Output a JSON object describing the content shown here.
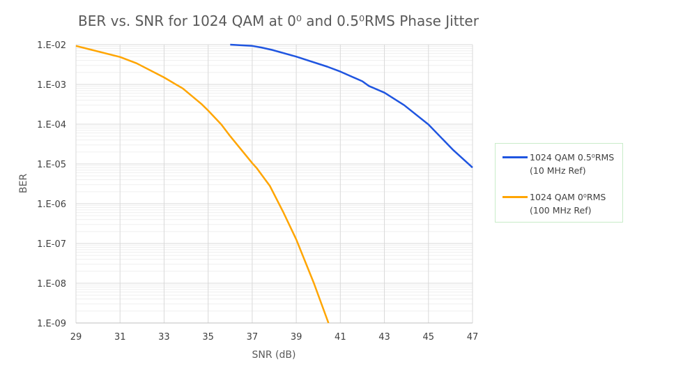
{
  "chart_data": {
    "type": "line",
    "title": "BER vs. SNR for 1024 QAM at 0⁰ and 0.5⁰RMS Phase Jitter",
    "xlabel": "SNR (dB)",
    "ylabel": "BER",
    "xlim": [
      29,
      47
    ],
    "ylim": [
      1e-09,
      0.01
    ],
    "yscale": "log",
    "grid": true,
    "legend_position": "right",
    "x_ticks": [
      "29",
      "31",
      "33",
      "35",
      "37",
      "39",
      "41",
      "43",
      "45",
      "47"
    ],
    "y_ticks": [
      "1.E-02",
      "1.E-03",
      "1.E-04",
      "1.E-05",
      "1.E-06",
      "1.E-07",
      "1.E-08",
      "1.E-09"
    ],
    "series": [
      {
        "name": "1024 QAM 0.5⁰RMS",
        "name_line2": "(10 MHz Ref)",
        "color": "#1f55e0",
        "x": [
          36.0,
          37.0,
          37.4,
          37.9,
          39.0,
          40.4,
          41.0,
          42.0,
          42.3,
          43.0,
          43.9,
          45.0,
          46.1,
          47.0
        ],
        "y": [
          0.01,
          0.0093,
          0.0085,
          0.0074,
          0.005,
          0.0028,
          0.0021,
          0.0012,
          0.00091,
          0.00062,
          0.0003,
          9.8e-05,
          2.3e-05,
          8.1e-06
        ]
      },
      {
        "name": "1024 QAM 0⁰RMS",
        "name_line2": "(100 MHz Ref)",
        "color": "#ffa500",
        "x": [
          29.0,
          31.0,
          31.75,
          33.0,
          33.85,
          34.7,
          35.0,
          35.6,
          36.0,
          37.0,
          37.2,
          37.8,
          38.4,
          39.0,
          39.8,
          40.46
        ],
        "y": [
          0.0093,
          0.0049,
          0.0034,
          0.0015,
          0.00079,
          0.00032,
          0.00022,
          9.8e-05,
          5e-05,
          1.05e-05,
          7.9e-06,
          2.8e-06,
          6.3e-07,
          1.26e-07,
          1e-08,
          1e-09
        ]
      }
    ]
  }
}
